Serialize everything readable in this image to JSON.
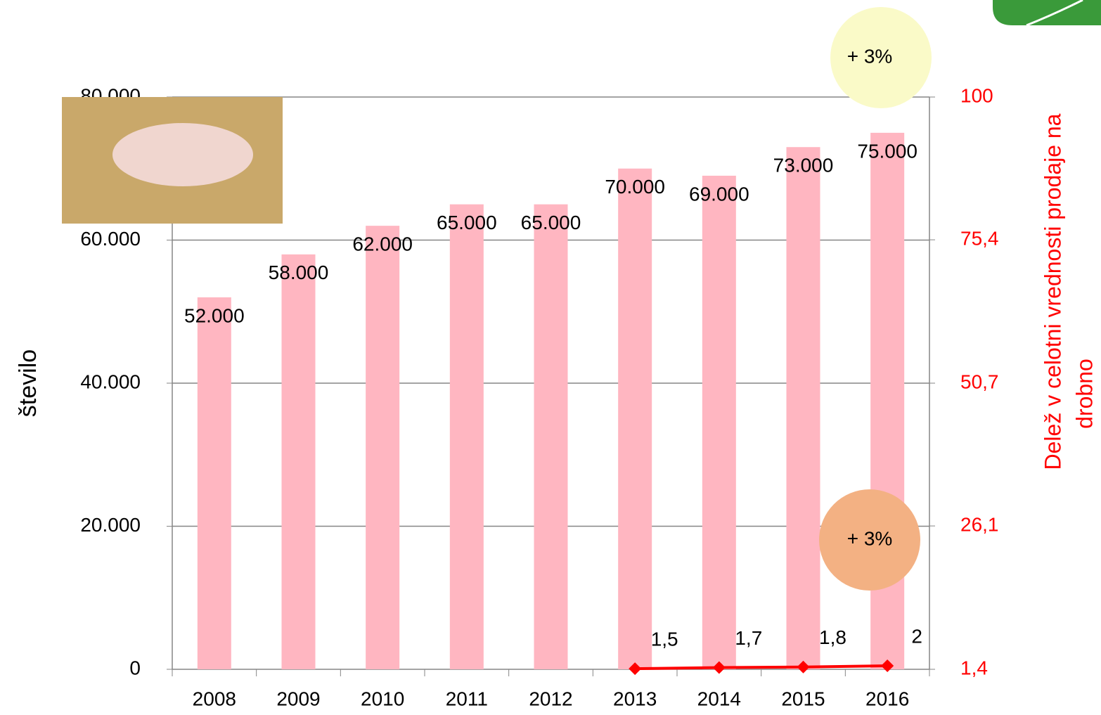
{
  "chart_data": {
    "type": "bar",
    "categories": [
      "2008",
      "2009",
      "2010",
      "2011",
      "2012",
      "2013",
      "2014",
      "2015",
      "2016"
    ],
    "series": [
      {
        "type": "bar",
        "color": "#ffb6c1",
        "values": [
          52000,
          58000,
          62000,
          65000,
          65000,
          70000,
          69000,
          73000,
          75000
        ],
        "value_labels": [
          "52.000",
          "58.000",
          "62.000",
          "65.000",
          "65.000",
          "70.000",
          "69.000",
          "73.000",
          "75.000"
        ]
      },
      {
        "type": "line",
        "axis": "y2",
        "color": "#ff0000",
        "values": [
          null,
          null,
          null,
          null,
          null,
          1.5,
          1.7,
          1.8,
          2
        ],
        "value_labels": [
          null,
          null,
          null,
          null,
          null,
          "1,5",
          "1,7",
          "1,8",
          "2"
        ]
      }
    ],
    "ylabel": "število",
    "y2label": [
      "Delež v celotni vrednosti prodaje na",
      "drobno"
    ],
    "ylim": [
      0,
      80000
    ],
    "yticks": [
      0,
      {
        "value": 20000,
        "label": "20.000"
      },
      {
        "value": 40000,
        "label": "40.000"
      },
      {
        "value": 60000,
        "label": "60.000"
      },
      {
        "value": 80000,
        "label": "80.000"
      }
    ],
    "y2lim": [
      1.4,
      100
    ],
    "y2ticks": [
      {
        "value": 1.4,
        "label": "1,4"
      },
      {
        "value": 26.1,
        "label": "26,1"
      },
      {
        "value": 50.7,
        "label": "50,7"
      },
      {
        "value": 75.4,
        "label": "75,4"
      },
      100
    ],
    "grid": true,
    "annotations": [
      "+ 3%",
      "+ 3%"
    ]
  }
}
